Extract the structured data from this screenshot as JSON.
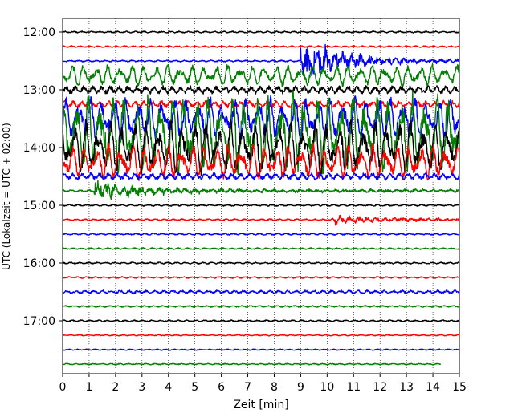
{
  "chart_data": {
    "type": "line",
    "title": "",
    "xlabel": "Zeit  [min]",
    "ylabel": "UTC (Lokalzeit = UTC + 02:00)",
    "xlim": [
      0,
      15
    ],
    "x_ticks": [
      "0",
      "1",
      "2",
      "3",
      "4",
      "5",
      "6",
      "7",
      "8",
      "9",
      "10",
      "11",
      "12",
      "13",
      "14",
      "15"
    ],
    "y_ticks": [
      "12:00",
      "13:00",
      "14:00",
      "15:00",
      "16:00",
      "17:00"
    ],
    "grid": "vertical dotted lines at each minute",
    "trace_interval_minutes": 15,
    "color_cycle": [
      "#000000",
      "#ff0000",
      "#0000ff",
      "#008000"
    ],
    "traces": [
      {
        "start": "12:00",
        "color": "#000000",
        "amplitude": 0.2,
        "end_minute": 15
      },
      {
        "start": "12:15",
        "color": "#ff0000",
        "amplitude": 0.2,
        "end_minute": 15
      },
      {
        "start": "12:30",
        "color": "#0000ff",
        "amplitude": 0.2,
        "end_minute": 15,
        "event_minute": 9.0,
        "event_amplitude": 3.5
      },
      {
        "start": "12:45",
        "color": "#008000",
        "amplitude": 1.2,
        "end_minute": 15
      },
      {
        "start": "13:00",
        "color": "#000000",
        "amplitude": 0.9,
        "end_minute": 15
      },
      {
        "start": "13:15",
        "color": "#ff0000",
        "amplitude": 0.8,
        "end_minute": 15
      },
      {
        "start": "13:30",
        "color": "#0000ff",
        "amplitude": 2.5,
        "end_minute": 15
      },
      {
        "start": "13:45",
        "color": "#008000",
        "amplitude": 4.5,
        "end_minute": 15
      },
      {
        "start": "14:00",
        "color": "#000000",
        "amplitude": 3.0,
        "end_minute": 15
      },
      {
        "start": "14:15",
        "color": "#ff0000",
        "amplitude": 2.0,
        "end_minute": 15
      },
      {
        "start": "14:30",
        "color": "#0000ff",
        "amplitude": 0.8,
        "end_minute": 15
      },
      {
        "start": "14:45",
        "color": "#008000",
        "amplitude": 0.3,
        "end_minute": 15,
        "event_minute": 1.2,
        "event_amplitude": 1.5
      },
      {
        "start": "15:00",
        "color": "#000000",
        "amplitude": 0.2,
        "end_minute": 15
      },
      {
        "start": "15:15",
        "color": "#ff0000",
        "amplitude": 0.2,
        "end_minute": 15,
        "event_minute": 10.2,
        "event_amplitude": 0.7
      },
      {
        "start": "15:30",
        "color": "#0000ff",
        "amplitude": 0.2,
        "end_minute": 15
      },
      {
        "start": "15:45",
        "color": "#008000",
        "amplitude": 0.2,
        "end_minute": 15
      },
      {
        "start": "16:00",
        "color": "#000000",
        "amplitude": 0.2,
        "end_minute": 15
      },
      {
        "start": "16:15",
        "color": "#ff0000",
        "amplitude": 0.2,
        "end_minute": 15
      },
      {
        "start": "16:30",
        "color": "#0000ff",
        "amplitude": 0.4,
        "end_minute": 15
      },
      {
        "start": "16:45",
        "color": "#008000",
        "amplitude": 0.2,
        "end_minute": 15
      },
      {
        "start": "17:00",
        "color": "#000000",
        "amplitude": 0.2,
        "end_minute": 15
      },
      {
        "start": "17:15",
        "color": "#ff0000",
        "amplitude": 0.15,
        "end_minute": 15
      },
      {
        "start": "17:30",
        "color": "#0000ff",
        "amplitude": 0.15,
        "end_minute": 15
      },
      {
        "start": "17:45",
        "color": "#008000",
        "amplitude": 0.15,
        "end_minute": 14.3
      }
    ]
  }
}
